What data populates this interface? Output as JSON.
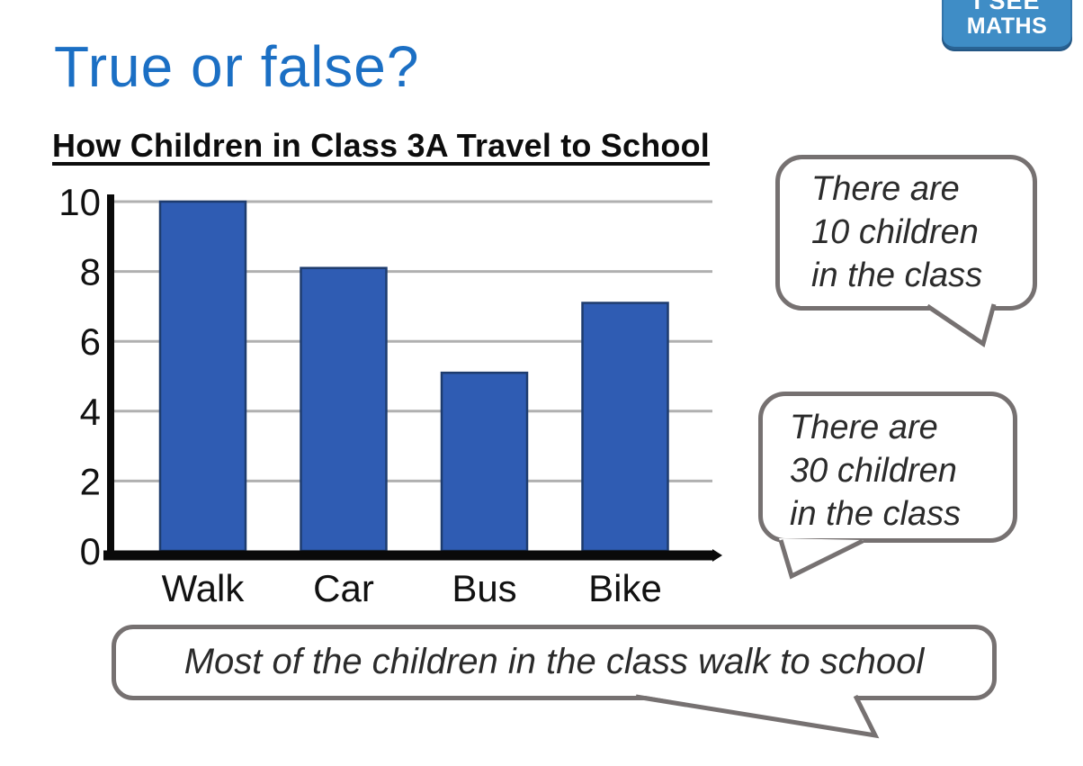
{
  "page": {
    "title": "True or false?",
    "title_color": "#1b6fc4",
    "background": "#ffffff"
  },
  "logo": {
    "line1": "I SEE",
    "line2": "MATHS",
    "bg_color": "#3f8dc6",
    "text_color": "#ffffff"
  },
  "chart_data": {
    "type": "bar",
    "title": "How Children in Class 3A Travel to School",
    "categories": [
      "Walk",
      "Car",
      "Bus",
      "Bike"
    ],
    "values": [
      10,
      8.1,
      5.1,
      7.1
    ],
    "xlabel": "",
    "ylabel": "",
    "yticks": [
      0,
      2,
      4,
      6,
      8,
      10
    ],
    "ylim": [
      0,
      10
    ],
    "grid": "horizontal",
    "legend": "none",
    "bar_color": "#2f5cb3",
    "bar_border_color": "#1e3c6e",
    "gridline_color": "#b0b0b0",
    "axis_color": "#0a0a0a"
  },
  "speech_bubbles": {
    "border_color": "#767171",
    "text_color": "#2b2b2b",
    "bubble_10": {
      "lines": [
        "There are",
        "10 children",
        "in the class"
      ]
    },
    "bubble_30": {
      "lines": [
        "There are",
        "30 children",
        "in the class"
      ]
    },
    "bubble_most": {
      "lines": [
        "Most of the children in the class walk to school"
      ]
    }
  }
}
